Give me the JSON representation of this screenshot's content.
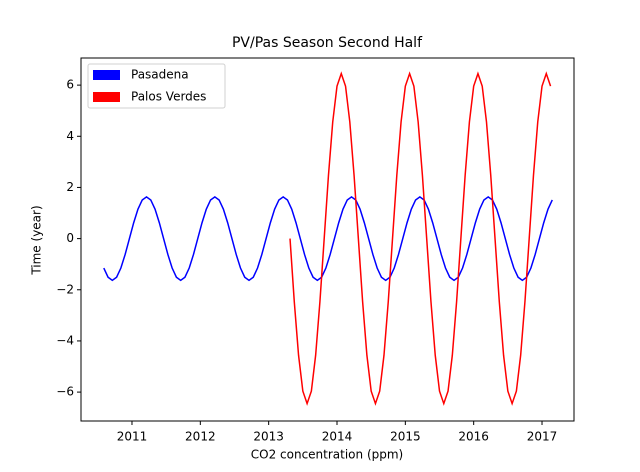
{
  "chart_data": {
    "type": "line",
    "title": "PV/Pas Season Second Half",
    "x_label": "CO2 concentration (ppm)",
    "y_label": "Time (year)",
    "xlim": [
      2010.254,
      2017.468
    ],
    "ylim": [
      -7.13,
      7.06
    ],
    "xticks": [
      2011,
      2012,
      2013,
      2014,
      2015,
      2016,
      2017
    ],
    "yticks": [
      {
        "value": -6,
        "label": "−6"
      },
      {
        "value": -4,
        "label": "−4"
      },
      {
        "value": -2,
        "label": "−2"
      },
      0,
      2,
      4,
      6
    ],
    "grid": false,
    "legend": "upper left",
    "series": [
      {
        "name": "Pasadena",
        "color": "#0000ff",
        "x": [
          2010.5875,
          2010.65,
          2010.7125,
          2010.775,
          2010.8375,
          2010.9,
          2010.9625,
          2011.025,
          2011.0875,
          2011.15,
          2011.2125,
          2011.275,
          2011.3375,
          2011.4,
          2011.4625,
          2011.525,
          2011.5875,
          2011.65,
          2011.7125,
          2011.775,
          2011.8375,
          2011.9,
          2011.9625,
          2012.025,
          2012.0875,
          2012.15,
          2012.2125,
          2012.275,
          2012.3375,
          2012.4,
          2012.4625,
          2012.525,
          2012.5875,
          2012.65,
          2012.7125,
          2012.775,
          2012.8375,
          2012.9,
          2012.9625,
          2013.025,
          2013.0875,
          2013.15,
          2013.2125,
          2013.275,
          2013.3375,
          2013.4,
          2013.4625,
          2013.525,
          2013.5875,
          2013.65,
          2013.7125,
          2013.775,
          2013.8375,
          2013.9,
          2013.9625,
          2014.025,
          2014.0875,
          2014.15,
          2014.2125,
          2014.275,
          2014.3375,
          2014.4,
          2014.4625,
          2014.525,
          2014.5875,
          2014.65,
          2014.7125,
          2014.775,
          2014.8375,
          2014.9,
          2014.9625,
          2015.025,
          2015.0875,
          2015.15,
          2015.2125,
          2015.275,
          2015.3375,
          2015.4,
          2015.4625,
          2015.525,
          2015.5875,
          2015.65,
          2015.7125,
          2015.775,
          2015.8375,
          2015.9,
          2015.9625,
          2016.025,
          2016.0875,
          2016.15,
          2016.2125,
          2016.275,
          2016.3375,
          2016.4,
          2016.4625,
          2016.525,
          2016.5875,
          2016.65,
          2016.7125,
          2016.775,
          2016.8375,
          2016.9,
          2016.9625,
          2017.025,
          2017.0875,
          2017.15
        ],
        "values": [
          -1.15,
          -1.51,
          -1.63,
          -1.51,
          -1.15,
          -0.62,
          0,
          0.62,
          1.15,
          1.51,
          1.63,
          1.51,
          1.15,
          0.62,
          0,
          -0.62,
          -1.15,
          -1.51,
          -1.63,
          -1.51,
          -1.15,
          -0.62,
          0,
          0.62,
          1.15,
          1.51,
          1.63,
          1.51,
          1.15,
          0.62,
          0,
          -0.62,
          -1.15,
          -1.51,
          -1.63,
          -1.51,
          -1.15,
          -0.62,
          0,
          0.62,
          1.15,
          1.51,
          1.63,
          1.51,
          1.15,
          0.62,
          0,
          -0.62,
          -1.15,
          -1.51,
          -1.63,
          -1.51,
          -1.15,
          -0.62,
          0,
          0.62,
          1.15,
          1.51,
          1.63,
          1.51,
          1.15,
          0.62,
          0,
          -0.62,
          -1.15,
          -1.51,
          -1.63,
          -1.51,
          -1.15,
          -0.62,
          0,
          0.62,
          1.15,
          1.51,
          1.63,
          1.51,
          1.15,
          0.62,
          0,
          -0.62,
          -1.15,
          -1.51,
          -1.63,
          -1.51,
          -1.15,
          -0.62,
          0,
          0.62,
          1.15,
          1.51,
          1.63,
          1.51,
          1.15,
          0.62,
          0,
          -0.62,
          -1.15,
          -1.51,
          -1.63,
          -1.51,
          -1.15,
          -0.62,
          0,
          0.62,
          1.15,
          1.51
        ]
      },
      {
        "name": "Palos Verdes",
        "color": "#ff0000",
        "x": [
          2013.3125,
          2013.375,
          2013.4375,
          2013.5,
          2013.5625,
          2013.625,
          2013.6875,
          2013.75,
          2013.8125,
          2013.875,
          2013.9375,
          2014,
          2014.0625,
          2014.125,
          2014.1875,
          2014.25,
          2014.3125,
          2014.375,
          2014.4375,
          2014.5,
          2014.5625,
          2014.625,
          2014.6875,
          2014.75,
          2014.8125,
          2014.875,
          2014.9375,
          2015,
          2015.0625,
          2015.125,
          2015.1875,
          2015.25,
          2015.3125,
          2015.375,
          2015.4375,
          2015.5,
          2015.5625,
          2015.625,
          2015.6875,
          2015.75,
          2015.8125,
          2015.875,
          2015.9375,
          2016,
          2016.0625,
          2016.125,
          2016.1875,
          2016.25,
          2016.3125,
          2016.375,
          2016.4375,
          2016.5,
          2016.5625,
          2016.625,
          2016.6875,
          2016.75,
          2016.8125,
          2016.875,
          2016.9375,
          2017,
          2017.0625,
          2017.125
        ],
        "values": [
          0,
          -2.47,
          -4.56,
          -5.96,
          -6.45,
          -5.96,
          -4.56,
          -2.47,
          0,
          2.47,
          4.56,
          5.96,
          6.45,
          5.96,
          4.56,
          2.47,
          0,
          -2.47,
          -4.56,
          -5.96,
          -6.45,
          -5.96,
          -4.56,
          -2.47,
          0,
          2.47,
          4.56,
          5.96,
          6.45,
          5.96,
          4.56,
          2.47,
          0,
          -2.47,
          -4.56,
          -5.96,
          -6.45,
          -5.96,
          -4.56,
          -2.47,
          0,
          2.47,
          4.56,
          5.96,
          6.45,
          5.96,
          4.56,
          2.47,
          0,
          -2.47,
          -4.56,
          -5.96,
          -6.45,
          -5.96,
          -4.56,
          -2.47,
          0,
          2.47,
          4.56,
          5.96,
          6.45,
          5.96
        ]
      }
    ]
  }
}
